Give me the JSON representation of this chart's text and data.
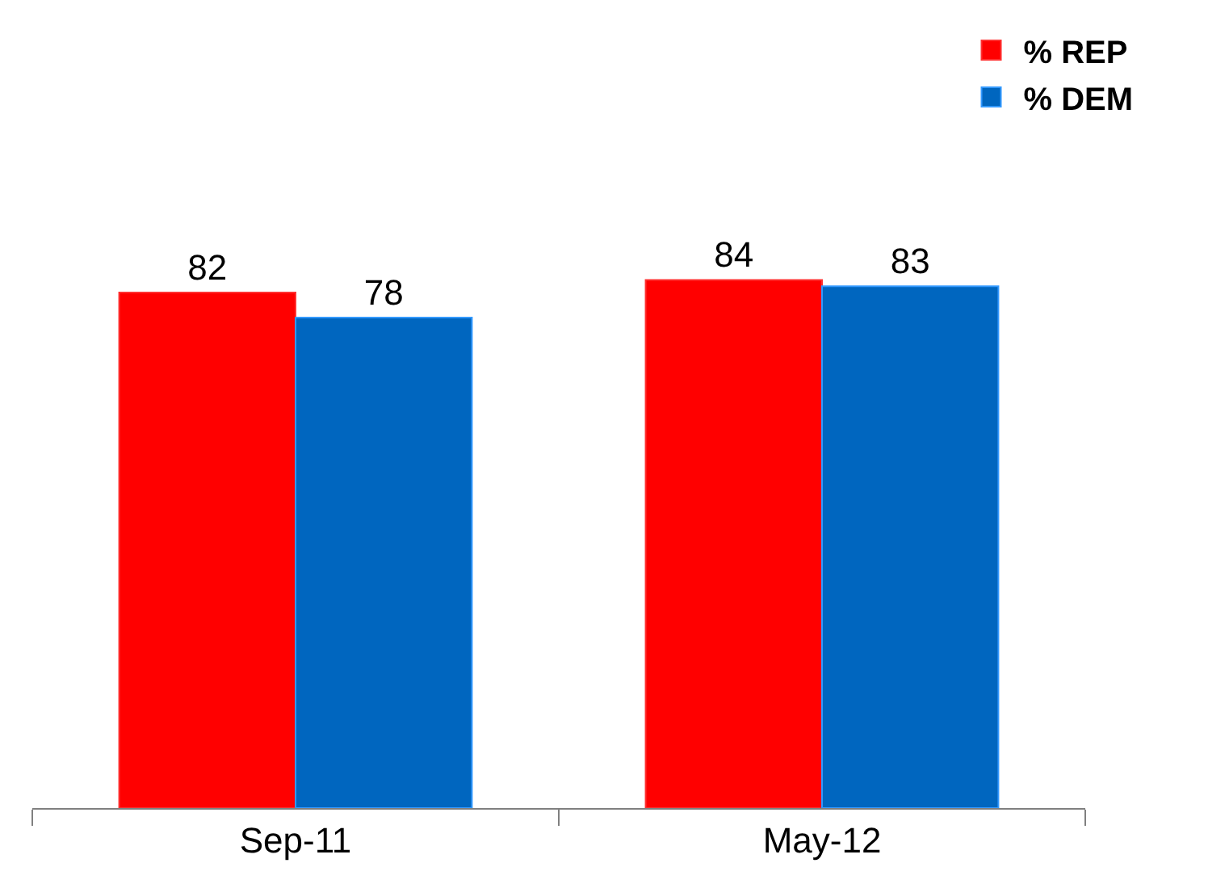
{
  "chart_data": {
    "type": "bar",
    "categories": [
      "Sep-11",
      "May-12"
    ],
    "series": [
      {
        "name": "% REP",
        "color": "#ff0000",
        "values": [
          82,
          84
        ]
      },
      {
        "name": "% DEM",
        "color": "#0066bf",
        "values": [
          78,
          83
        ]
      }
    ],
    "tick_labels": "x",
    "data_labels": true,
    "legend": "top right"
  }
}
